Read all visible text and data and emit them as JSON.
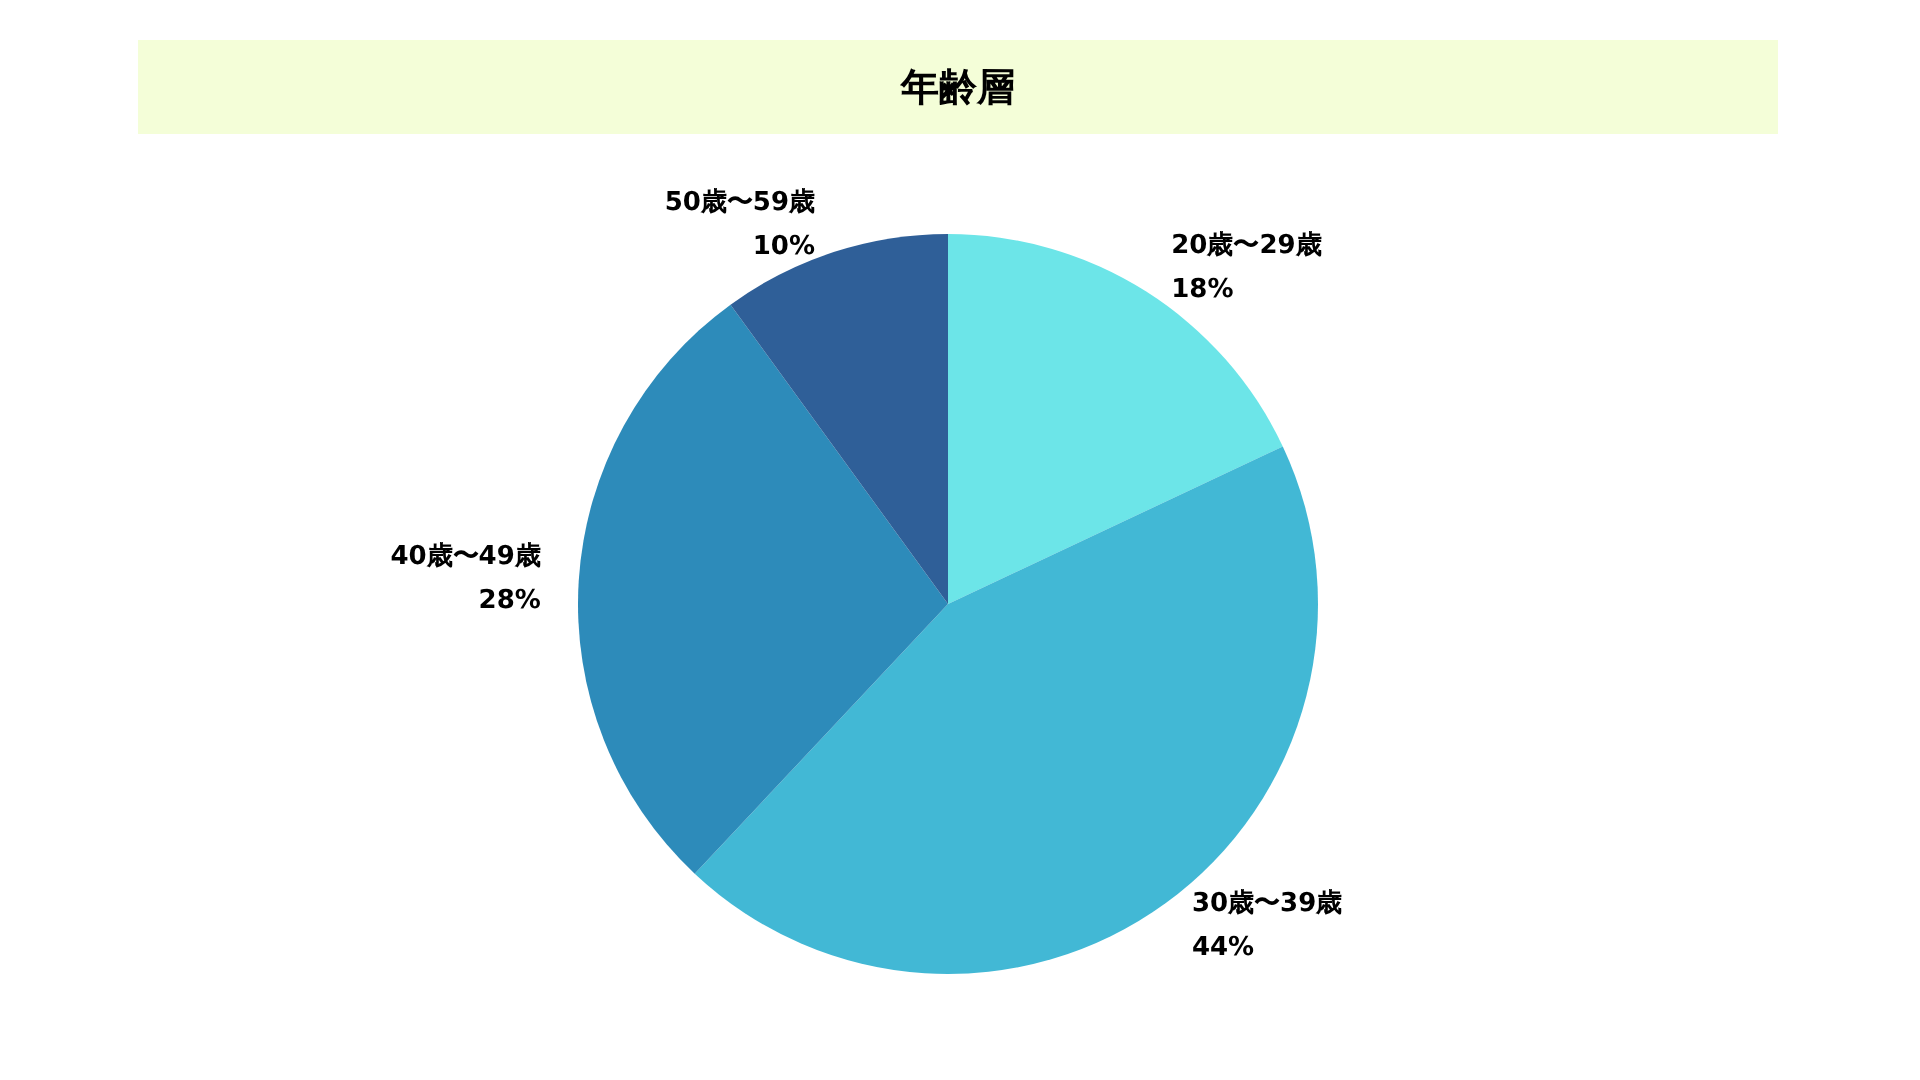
{
  "chart_data": {
    "type": "pie",
    "title": "年齢層",
    "categories": [
      "20歳〜29歳",
      "30歳〜39歳",
      "40歳〜49歳",
      "50歳〜59歳"
    ],
    "values": [
      18,
      44,
      28,
      10
    ],
    "colors": [
      "#6ce5e8",
      "#42b8d5",
      "#2d8bba",
      "#2f5f98"
    ],
    "value_labels": [
      "18%",
      "44%",
      "28%",
      "10%"
    ],
    "legend": false
  }
}
